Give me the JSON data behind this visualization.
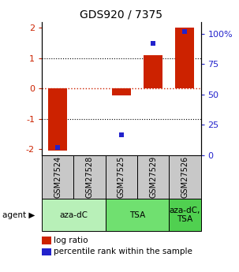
{
  "title": "GDS920 / 7375",
  "samples": [
    "GSM27524",
    "GSM27528",
    "GSM27525",
    "GSM27529",
    "GSM27526"
  ],
  "log_ratios": [
    -2.05,
    0.0,
    -0.22,
    1.1,
    2.0
  ],
  "percentile_ranks": [
    1.0,
    null,
    12.0,
    87.0,
    97.0
  ],
  "groups": [
    {
      "label": "aza-dC",
      "indices": [
        0,
        1
      ],
      "color": "#b8f0b8"
    },
    {
      "label": "TSA",
      "indices": [
        2,
        3
      ],
      "color": "#70e070"
    },
    {
      "label": "aza-dC,\nTSA",
      "indices": [
        4
      ],
      "color": "#50d050"
    }
  ],
  "ylim_left": [
    -2.2,
    2.2
  ],
  "ylim_right": [
    0,
    110
  ],
  "yticks_left": [
    -2,
    -1,
    0,
    1,
    2
  ],
  "ytick_labels_left": [
    "-2",
    "-1",
    "0",
    "1",
    "2"
  ],
  "yticks_right": [
    0,
    25,
    50,
    75,
    100
  ],
  "ytick_labels_right": [
    "0",
    "25",
    "50",
    "75",
    "100%"
  ],
  "bar_color": "#cc2200",
  "dot_color": "#2222cc",
  "zero_line_color": "#cc2200",
  "grid_color": "#000000",
  "sample_box_color": "#c8c8c8",
  "agent_label": "agent",
  "legend_log_ratio": "log ratio",
  "legend_percentile": "percentile rank within the sample",
  "background_color": "#ffffff"
}
